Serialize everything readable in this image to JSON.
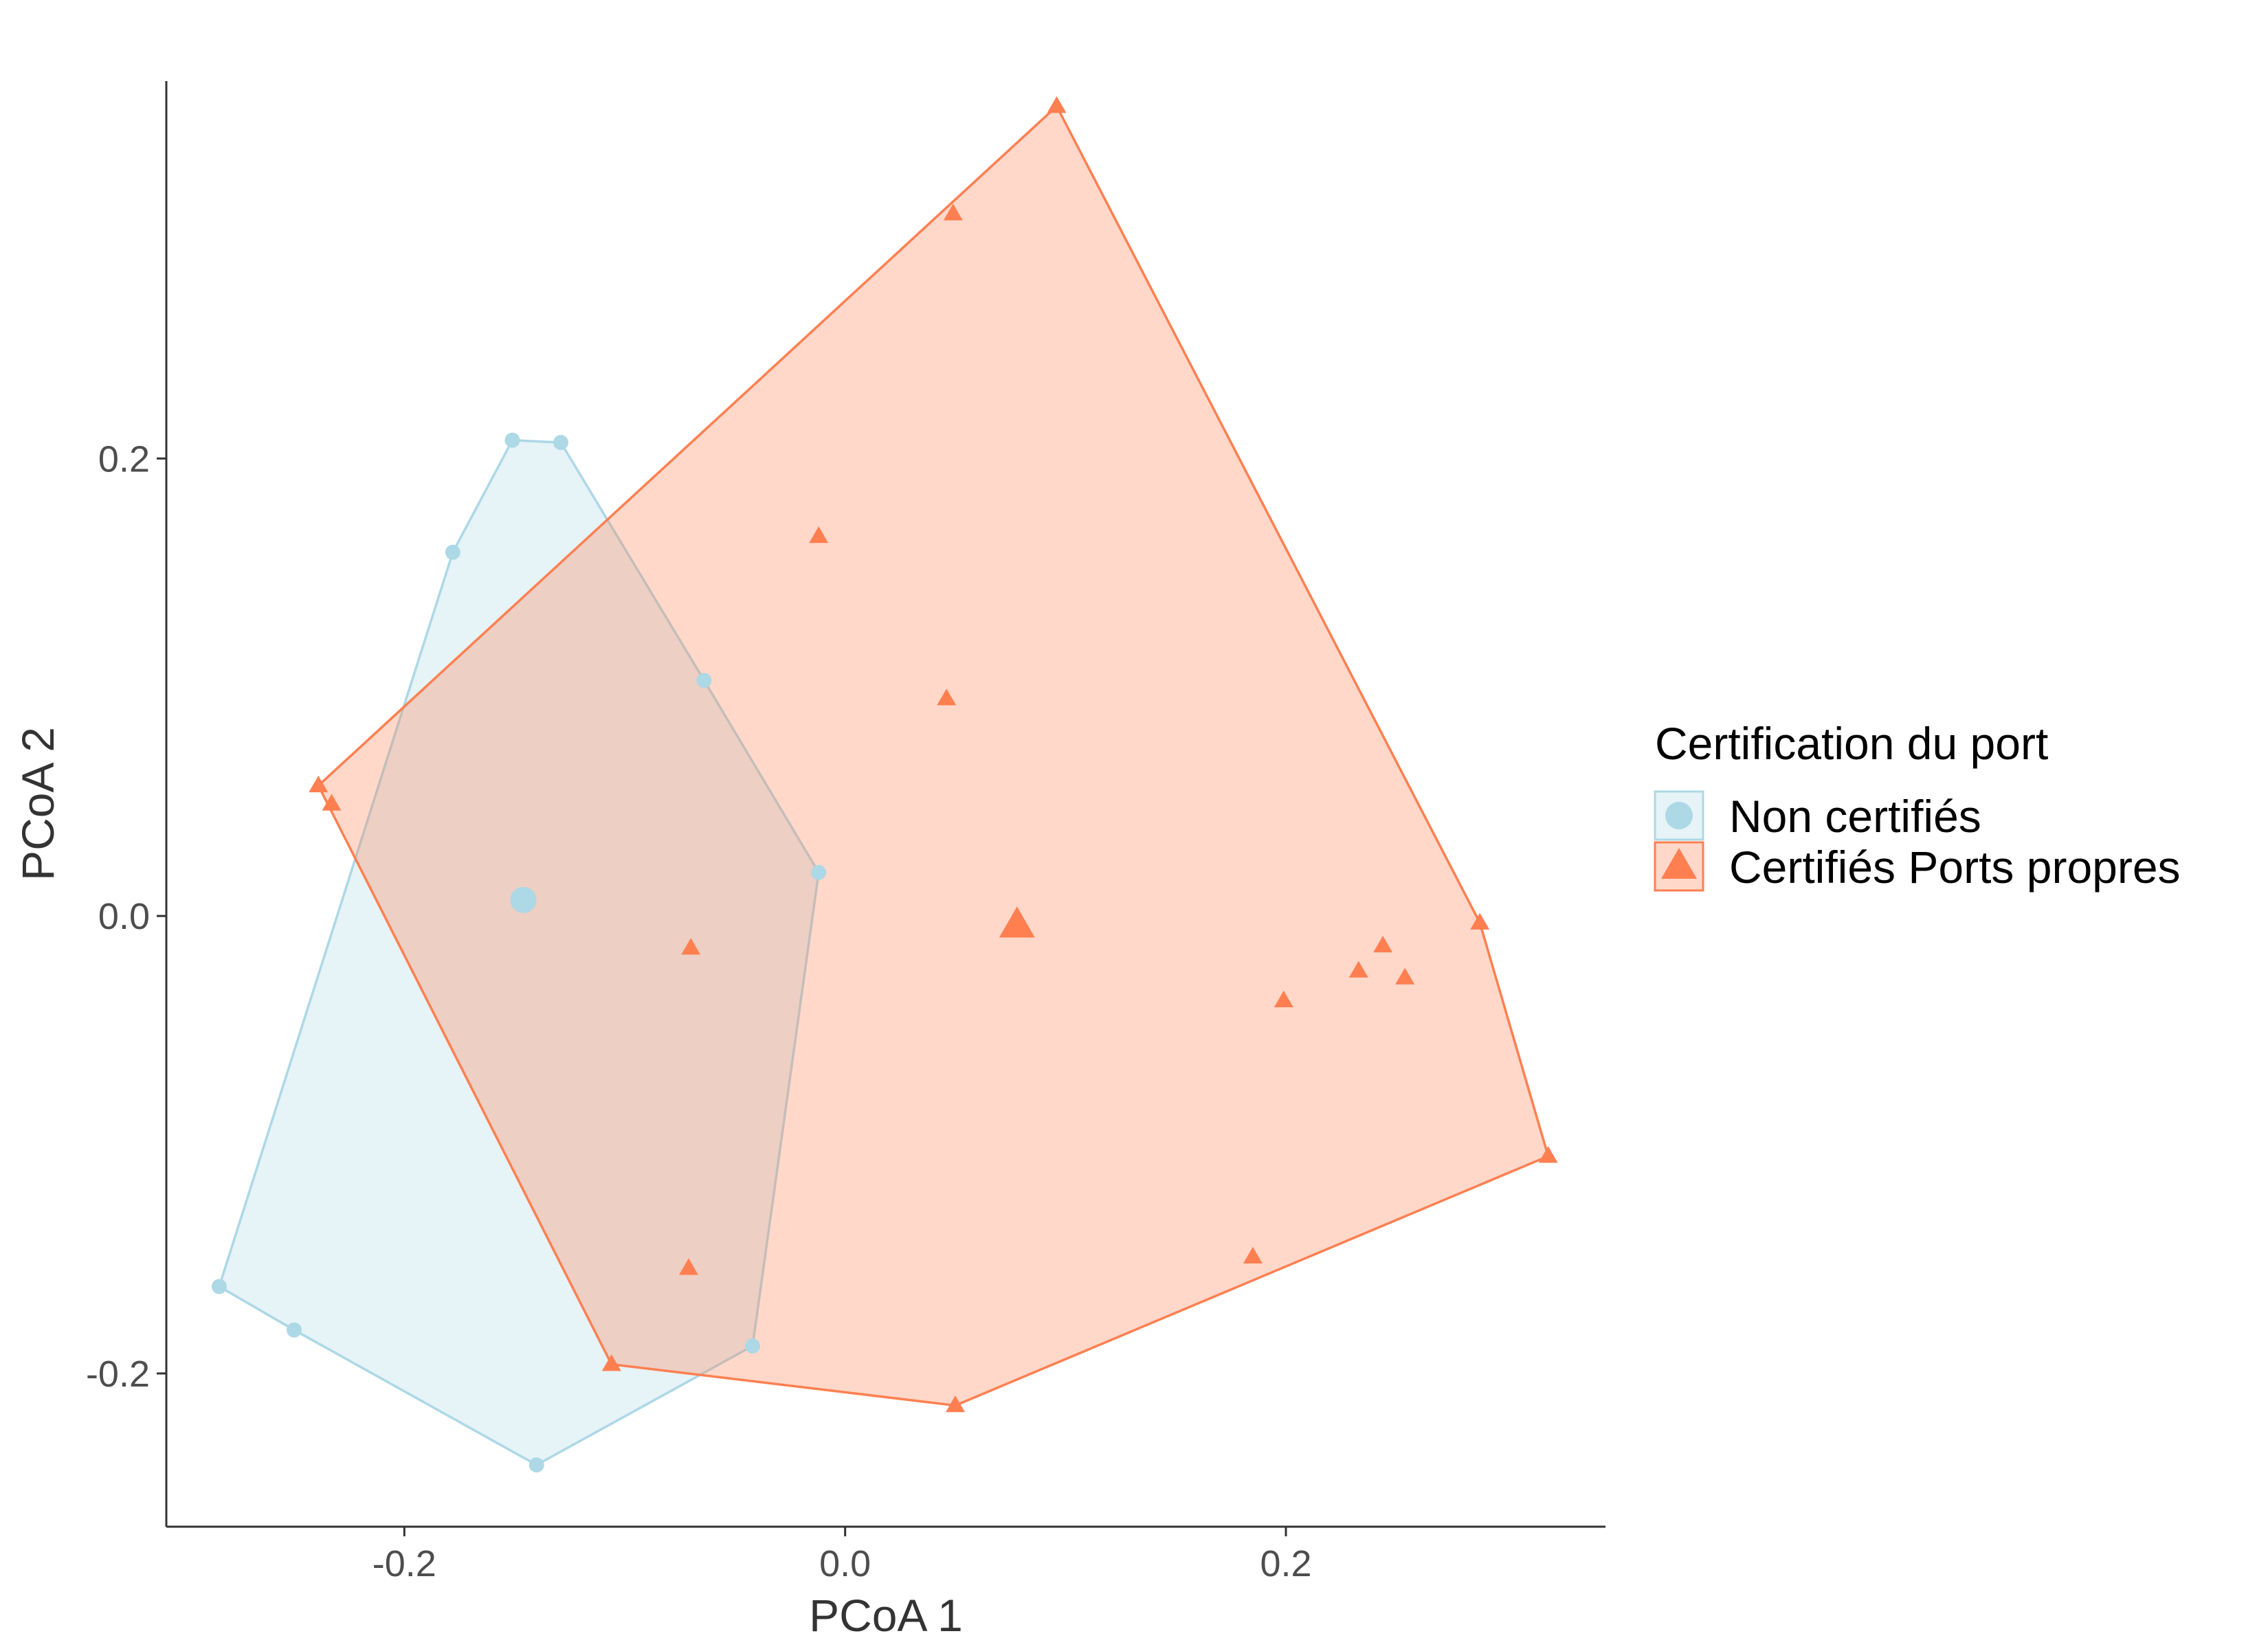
{
  "chart_data": {
    "type": "scatter",
    "title": "",
    "xlabel": "PCoA 1",
    "ylabel": "PCoA 2",
    "xlim": [
      -0.308,
      0.345
    ],
    "ylim": [
      -0.267,
      0.365
    ],
    "x_ticks": [
      -0.2,
      0.0,
      0.2
    ],
    "x_tick_labels": [
      "-0.2",
      "0.0",
      "0.2"
    ],
    "y_ticks": [
      -0.2,
      0.0,
      0.2
    ],
    "y_tick_labels": [
      "-0.2",
      "0.0",
      "0.2"
    ],
    "grid": false,
    "legend": {
      "title": "Certification du port",
      "placement": "right"
    },
    "series": [
      {
        "name": "Non certifiés",
        "marker": "circle",
        "color": "#ADD8E6",
        "fill": "#ADD8E6",
        "fill_opacity": 0.3,
        "points": [
          [
            -0.284,
            -0.162
          ],
          [
            -0.25,
            -0.181
          ],
          [
            -0.14,
            -0.24
          ],
          [
            -0.042,
            -0.188
          ],
          [
            -0.012,
            0.019
          ],
          [
            -0.064,
            0.103
          ],
          [
            -0.129,
            0.207
          ],
          [
            -0.151,
            0.208
          ],
          [
            -0.178,
            0.159
          ]
        ],
        "hull": [
          [
            -0.284,
            -0.162
          ],
          [
            -0.25,
            -0.181
          ],
          [
            -0.14,
            -0.24
          ],
          [
            -0.042,
            -0.188
          ],
          [
            -0.012,
            0.019
          ],
          [
            -0.064,
            0.103
          ],
          [
            -0.129,
            0.207
          ],
          [
            -0.151,
            0.208
          ],
          [
            -0.178,
            0.159
          ]
        ],
        "centroid": [
          -0.146,
          0.007
        ]
      },
      {
        "name": "Certifiés Ports propres",
        "marker": "triangle",
        "color": "#FF7F50",
        "fill": "#FF7F50",
        "fill_opacity": 0.3,
        "points": [
          [
            -0.239,
            0.057
          ],
          [
            -0.233,
            0.049
          ],
          [
            0.096,
            0.354
          ],
          [
            0.049,
            0.307
          ],
          [
            -0.012,
            0.166
          ],
          [
            0.046,
            0.095
          ],
          [
            -0.07,
            -0.014
          ],
          [
            0.199,
            -0.037
          ],
          [
            0.233,
            -0.024
          ],
          [
            0.244,
            -0.013
          ],
          [
            0.254,
            -0.027
          ],
          [
            0.288,
            -0.003
          ],
          [
            0.319,
            -0.105
          ],
          [
            0.185,
            -0.149
          ],
          [
            -0.071,
            -0.154
          ],
          [
            -0.106,
            -0.196
          ],
          [
            0.05,
            -0.214
          ]
        ],
        "hull": [
          [
            -0.239,
            0.057
          ],
          [
            0.096,
            0.354
          ],
          [
            0.288,
            -0.003
          ],
          [
            0.319,
            -0.105
          ],
          [
            0.05,
            -0.214
          ],
          [
            -0.106,
            -0.196
          ]
        ],
        "centroid": [
          0.078,
          -0.004
        ]
      }
    ]
  }
}
